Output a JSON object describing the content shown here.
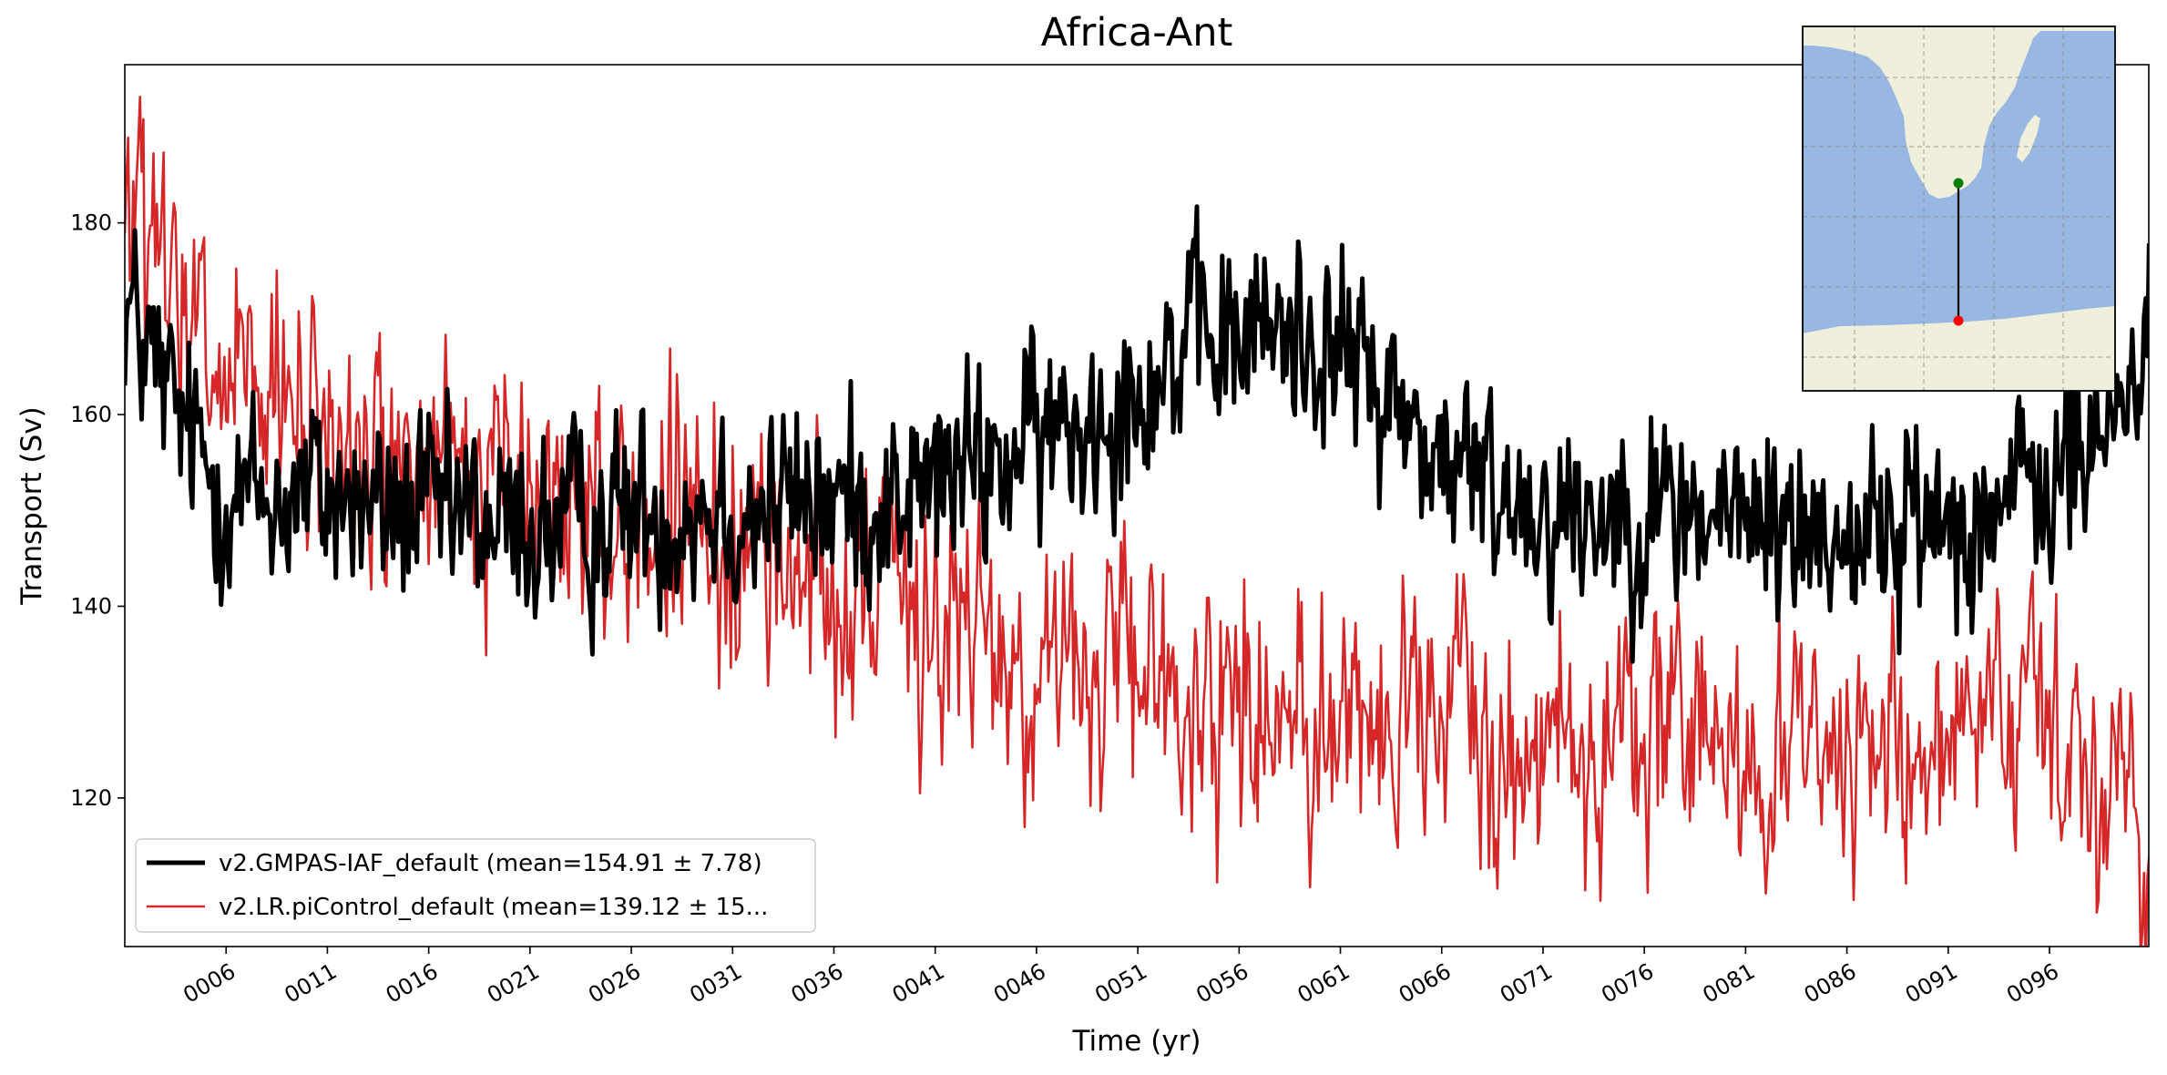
{
  "chart_data": {
    "type": "line",
    "title": "Africa-Ant",
    "xlabel": "Time (yr)",
    "ylabel": "Transport (Sv)",
    "xlim": [
      1.0,
      100.9
    ],
    "ylim": [
      104.5,
      196.5
    ],
    "yticks": [
      120,
      140,
      160,
      180
    ],
    "ytick_labels": [
      "120",
      "140",
      "160",
      "180"
    ],
    "xticks": [
      6,
      11,
      16,
      21,
      26,
      31,
      36,
      41,
      46,
      51,
      56,
      61,
      66,
      71,
      76,
      81,
      86,
      91,
      96
    ],
    "xtick_labels": [
      "0006",
      "0011",
      "0016",
      "0021",
      "0026",
      "0031",
      "0036",
      "0041",
      "0046",
      "0051",
      "0056",
      "0061",
      "0066",
      "0071",
      "0076",
      "0081",
      "0086",
      "0091",
      "0096"
    ],
    "legend_position": "lower-left",
    "series": [
      {
        "name": "v2.GMPAS-IAF_default (mean=154.91 ± 7.78)",
        "color": "#000000",
        "kind": "monthly",
        "anchors_x": [
          1,
          2,
          4,
          6,
          8,
          10,
          12,
          14,
          16,
          18,
          20,
          22,
          24,
          26,
          28,
          30,
          32,
          34,
          36,
          38,
          40,
          42,
          44,
          46,
          48,
          50,
          52,
          54,
          56,
          58,
          60,
          62,
          64,
          66,
          68,
          70,
          72,
          74,
          76,
          78,
          80,
          82,
          84,
          86,
          88,
          90,
          92,
          94,
          96,
          98,
          100,
          100.9
        ],
        "anchors_y": [
          172,
          167,
          158,
          152,
          151,
          152,
          151,
          150,
          150,
          149,
          148,
          148,
          149,
          150,
          150,
          151,
          150,
          151,
          151,
          151,
          152,
          154,
          155,
          157,
          159,
          162,
          165,
          167,
          168,
          169,
          168,
          165,
          160,
          155,
          153,
          151,
          150,
          150,
          150,
          150,
          149,
          149,
          148,
          148,
          148,
          149,
          150,
          151,
          153,
          156,
          163,
          170
        ],
        "noise": 6.5
      },
      {
        "name": "v2.LR.piControl_default (mean=139.12 ± 15...",
        "color": "#d62728",
        "kind": "monthly",
        "anchors_x": [
          1,
          2,
          4,
          6,
          8,
          10,
          12,
          14,
          16,
          18,
          20,
          22,
          24,
          26,
          28,
          30,
          32,
          34,
          36,
          38,
          40,
          42,
          44,
          46,
          48,
          50,
          52,
          54,
          56,
          58,
          60,
          62,
          64,
          66,
          68,
          70,
          72,
          74,
          76,
          78,
          80,
          82,
          84,
          86,
          88,
          90,
          92,
          94,
          96,
          98,
          100,
          100.9
        ],
        "anchors_y": [
          183,
          178,
          168,
          163,
          160,
          158,
          156,
          155,
          154,
          153,
          152,
          151,
          150,
          149,
          148,
          147,
          146,
          145,
          143,
          141,
          140,
          138,
          136,
          134,
          133,
          132,
          131,
          131,
          130,
          129,
          129,
          128,
          128,
          127,
          127,
          127,
          126,
          126,
          126,
          126,
          126,
          125,
          125,
          125,
          125,
          125,
          125,
          125,
          125,
          125,
          125,
          110
        ],
        "noise": 8.5
      }
    ],
    "inset_map": {
      "description_visible": "map inset",
      "ocean_color": "#98b7e2",
      "land_color": "#efefdb",
      "start_point_color": "#008000",
      "end_point_color": "#ff0000",
      "line_color": "#000000"
    }
  }
}
